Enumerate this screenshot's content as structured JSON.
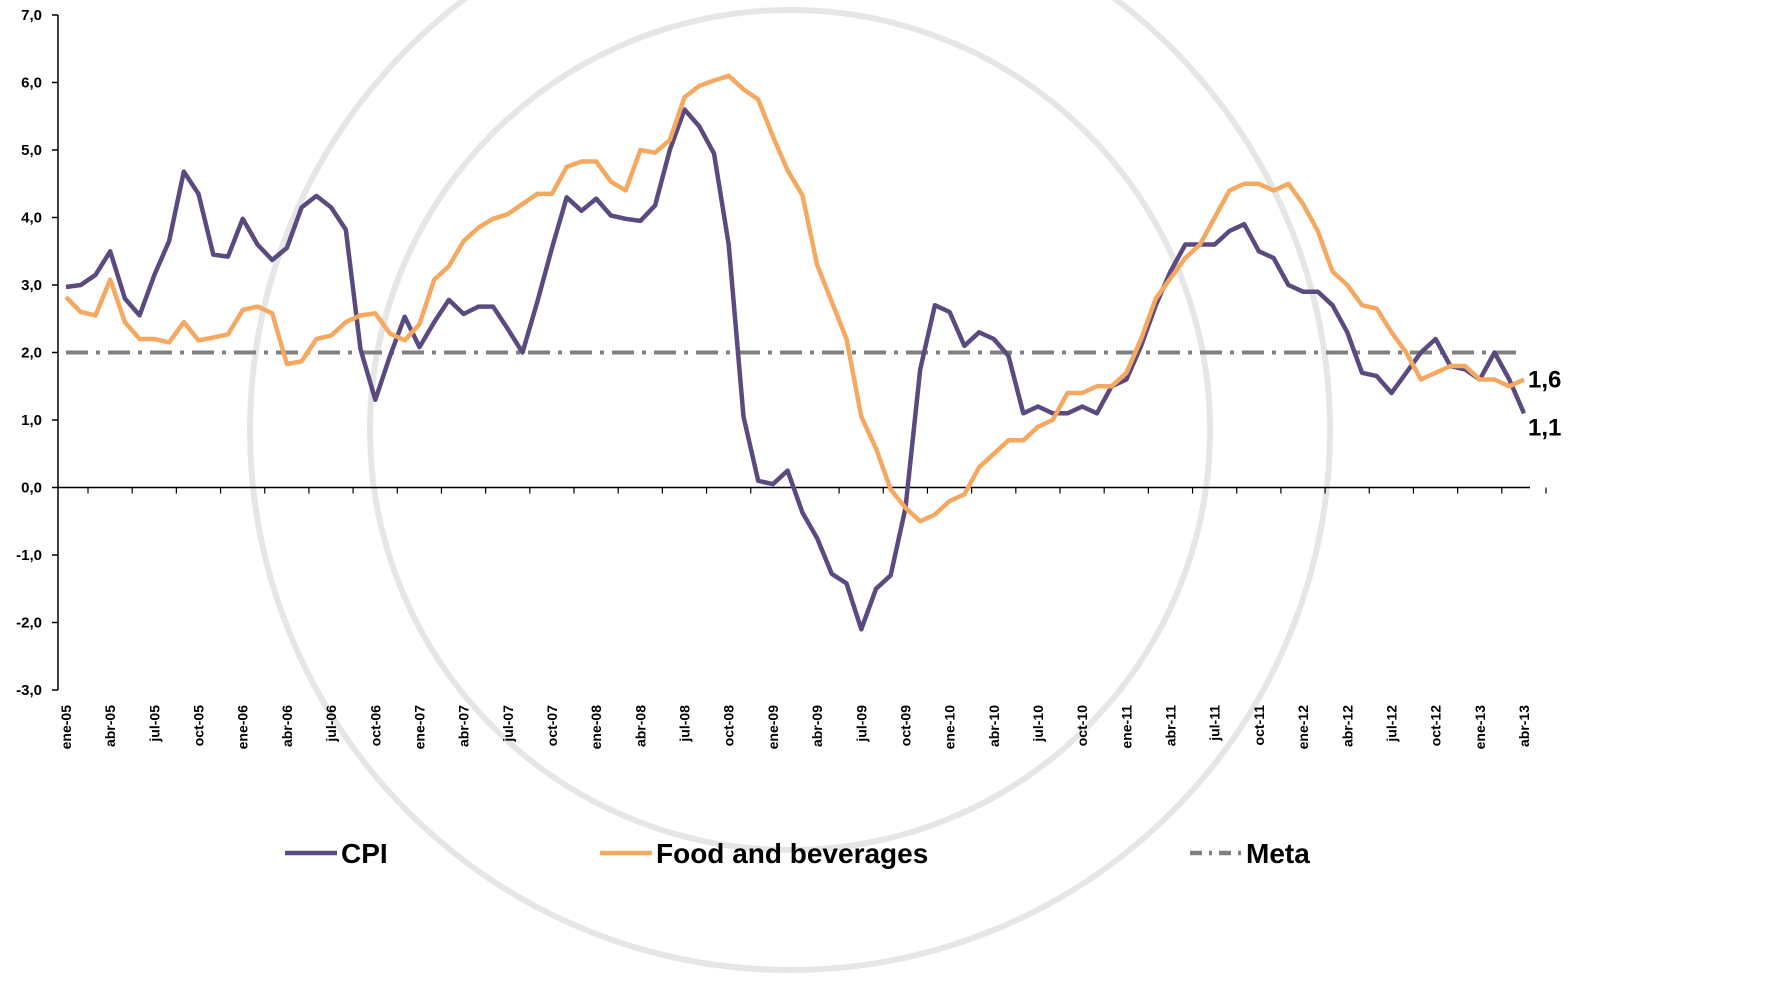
{
  "chart_data": {
    "type": "line",
    "categories": [
      "ene-05",
      null,
      null,
      "abr-05",
      null,
      null,
      "jul-05",
      null,
      null,
      "oct-05",
      null,
      null,
      "ene-06",
      null,
      null,
      "abr-06",
      null,
      null,
      "jul-06",
      null,
      null,
      "oct-06",
      null,
      null,
      "ene-07",
      null,
      null,
      "abr-07",
      null,
      null,
      "jul-07",
      null,
      null,
      "oct-07",
      null,
      null,
      "ene-08",
      null,
      null,
      "abr-08",
      null,
      null,
      "jul-08",
      null,
      null,
      "oct-08",
      null,
      null,
      "ene-09",
      null,
      null,
      "abr-09",
      null,
      null,
      "jul-09",
      null,
      null,
      "oct-09",
      null,
      null,
      "ene-10",
      null,
      null,
      "abr-10",
      null,
      null,
      "jul-10",
      null,
      null,
      "oct-10",
      null,
      null,
      "ene-11",
      null,
      null,
      "abr-11",
      null,
      null,
      "jul-11",
      null,
      null,
      "oct-11",
      null,
      null,
      "ene-12",
      null,
      null,
      "abr-12",
      null,
      null,
      "jul-12",
      null,
      null,
      "oct-12",
      null,
      null,
      "ene-13",
      null,
      null,
      "abr-13"
    ],
    "series": [
      {
        "name": "CPI",
        "color": "#5b4a80",
        "values": [
          2.97,
          3.0,
          3.15,
          3.5,
          2.8,
          2.55,
          3.15,
          3.65,
          4.68,
          4.35,
          3.45,
          3.42,
          3.98,
          3.6,
          3.37,
          3.55,
          4.15,
          4.32,
          4.15,
          3.82,
          2.05,
          1.3,
          1.95,
          2.53,
          2.08,
          2.45,
          2.78,
          2.57,
          2.68,
          2.68,
          2.35,
          2.0,
          2.75,
          3.55,
          4.3,
          4.1,
          4.28,
          4.03,
          3.98,
          3.95,
          4.18,
          5.0,
          5.6,
          5.35,
          4.95,
          3.6,
          1.05,
          0.1,
          0.05,
          0.25,
          -0.37,
          -0.75,
          -1.28,
          -1.42,
          -2.1,
          -1.5,
          -1.3,
          -0.3,
          1.75,
          2.7,
          2.6,
          2.1,
          2.3,
          2.2,
          1.95,
          1.1,
          1.2,
          1.1,
          1.1,
          1.2,
          1.1,
          1.5,
          1.6,
          2.1,
          2.7,
          3.2,
          3.6,
          3.6,
          3.6,
          3.8,
          3.9,
          3.5,
          3.4,
          3.0,
          2.9,
          2.9,
          2.7,
          2.3,
          1.7,
          1.65,
          1.4,
          1.7,
          2.0,
          2.2,
          1.8,
          1.75,
          1.6,
          2.0,
          1.6,
          1.1
        ],
        "value_labels": [
          null,
          null,
          null,
          null,
          null,
          null,
          null,
          null,
          null,
          null,
          null,
          null,
          null,
          null,
          null,
          null,
          null,
          null,
          null,
          null,
          null,
          null,
          null,
          null,
          null,
          null,
          null,
          null,
          null,
          null,
          null,
          null,
          null,
          null,
          null,
          null,
          null,
          null,
          null,
          null,
          null,
          null,
          null,
          null,
          null,
          null,
          null,
          null,
          null,
          null,
          null,
          null,
          null,
          null,
          null,
          null,
          null,
          null,
          null,
          null,
          null,
          null,
          null,
          null,
          null,
          null,
          null,
          null,
          null,
          null,
          null,
          null,
          null,
          null,
          null,
          null,
          null,
          null,
          null,
          null,
          null,
          null,
          null,
          null,
          null,
          null,
          null,
          null,
          null,
          null,
          null,
          null,
          null,
          null,
          null,
          null,
          null,
          null,
          null,
          "1,1"
        ],
        "label_color": "#6b5fa0"
      },
      {
        "name": "Food and beverages",
        "color": "#f5a960",
        "values": [
          2.82,
          2.6,
          2.55,
          3.08,
          2.45,
          2.2,
          2.2,
          2.15,
          2.45,
          2.18,
          2.22,
          2.27,
          2.63,
          2.68,
          2.58,
          1.83,
          1.87,
          2.2,
          2.25,
          2.45,
          2.55,
          2.58,
          2.28,
          2.18,
          2.42,
          3.08,
          3.28,
          3.65,
          3.85,
          3.98,
          4.05,
          4.2,
          4.35,
          4.35,
          4.75,
          4.83,
          4.83,
          4.53,
          4.4,
          5.0,
          4.96,
          5.15,
          5.78,
          5.95,
          6.03,
          6.1,
          5.9,
          5.75,
          5.2,
          4.7,
          4.33,
          3.3,
          2.75,
          2.2,
          1.05,
          0.58,
          -0.03,
          -0.3,
          -0.5,
          -0.4,
          -0.2,
          -0.1,
          0.3,
          0.5,
          0.7,
          0.7,
          0.9,
          1.0,
          1.4,
          1.4,
          1.5,
          1.5,
          1.7,
          2.2,
          2.8,
          3.1,
          3.4,
          3.6,
          4.0,
          4.4,
          4.5,
          4.5,
          4.4,
          4.5,
          4.2,
          3.8,
          3.2,
          3.0,
          2.7,
          2.65,
          2.3,
          2.0,
          1.6,
          1.7,
          1.8,
          1.8,
          1.6,
          1.6,
          1.5,
          1.6
        ],
        "value_labels": [
          null,
          null,
          null,
          null,
          null,
          null,
          null,
          null,
          null,
          null,
          null,
          null,
          null,
          null,
          null,
          null,
          null,
          null,
          null,
          null,
          null,
          null,
          null,
          null,
          null,
          null,
          null,
          null,
          null,
          null,
          null,
          null,
          null,
          null,
          null,
          null,
          null,
          null,
          null,
          null,
          null,
          null,
          null,
          null,
          null,
          null,
          null,
          null,
          null,
          null,
          null,
          null,
          null,
          null,
          null,
          null,
          null,
          null,
          null,
          null,
          null,
          null,
          null,
          null,
          null,
          null,
          null,
          null,
          null,
          null,
          null,
          null,
          null,
          null,
          null,
          null,
          null,
          null,
          null,
          null,
          null,
          null,
          null,
          null,
          null,
          null,
          null,
          null,
          null,
          null,
          null,
          null,
          null,
          null,
          null,
          null,
          null,
          null,
          null,
          "1,6"
        ],
        "label_color": "#f07e26"
      },
      {
        "name": "Meta",
        "color": "#808080",
        "dash": "dash-dot",
        "values": [
          2,
          2,
          2,
          2,
          2,
          2,
          2,
          2,
          2,
          2,
          2,
          2,
          2,
          2,
          2,
          2,
          2,
          2,
          2,
          2,
          2,
          2,
          2,
          2,
          2,
          2,
          2,
          2,
          2,
          2,
          2,
          2,
          2,
          2,
          2,
          2,
          2,
          2,
          2,
          2,
          2,
          2,
          2,
          2,
          2,
          2,
          2,
          2,
          2,
          2,
          2,
          2,
          2,
          2,
          2,
          2,
          2,
          2,
          2,
          2,
          2,
          2,
          2,
          2,
          2,
          2,
          2,
          2,
          2,
          2,
          2,
          2,
          2,
          2,
          2,
          2,
          2,
          2,
          2,
          2,
          2,
          2,
          2,
          2,
          2,
          2,
          2,
          2,
          2,
          2,
          2,
          2,
          2,
          2,
          2,
          2,
          2,
          2,
          2,
          2
        ]
      }
    ],
    "ylim": [
      -3,
      7
    ],
    "yticks": [
      {
        "value": -3,
        "label": "-3,0"
      },
      {
        "value": -2,
        "label": "-2,0"
      },
      {
        "value": -1,
        "label": "-1,0"
      },
      {
        "value": 0,
        "label": "0,0"
      },
      {
        "value": 1,
        "label": "1,0"
      },
      {
        "value": 2,
        "label": "2,0"
      },
      {
        "value": 3,
        "label": "3,0"
      },
      {
        "value": 4,
        "label": "4,0"
      },
      {
        "value": 5,
        "label": "5,0"
      },
      {
        "value": 6,
        "label": "6,0"
      },
      {
        "value": 7,
        "label": "7,0"
      }
    ],
    "legend": "bottom"
  }
}
